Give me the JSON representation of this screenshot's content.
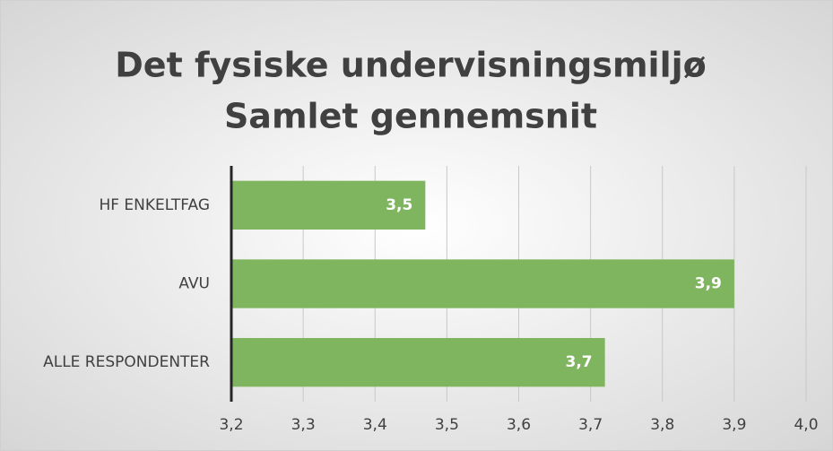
{
  "chart_data": {
    "type": "bar",
    "orientation": "horizontal",
    "title": "Det fysiske undervisningsmiljø",
    "subtitle": "Samlet gennemsnit",
    "categories": [
      "HF ENKELTFAG",
      "AVU",
      "ALLE RESPONDENTER"
    ],
    "values": [
      3.47,
      3.9,
      3.72
    ],
    "value_labels": [
      "3,5",
      "3,9",
      "3,7"
    ],
    "color": "#80b55f",
    "xlim": [
      3.2,
      4.0
    ],
    "xticks": [
      {
        "value": 3.2,
        "label": "3,2"
      },
      {
        "value": 3.3,
        "label": "3,3"
      },
      {
        "value": 3.4,
        "label": "3,4"
      },
      {
        "value": 3.5,
        "label": "3,5"
      },
      {
        "value": 3.6,
        "label": "3,6"
      },
      {
        "value": 3.7,
        "label": "3,7"
      },
      {
        "value": 3.8,
        "label": "3,8"
      },
      {
        "value": 3.9,
        "label": "3,9"
      },
      {
        "value": 4.0,
        "label": "4,0"
      }
    ],
    "grid": true
  }
}
